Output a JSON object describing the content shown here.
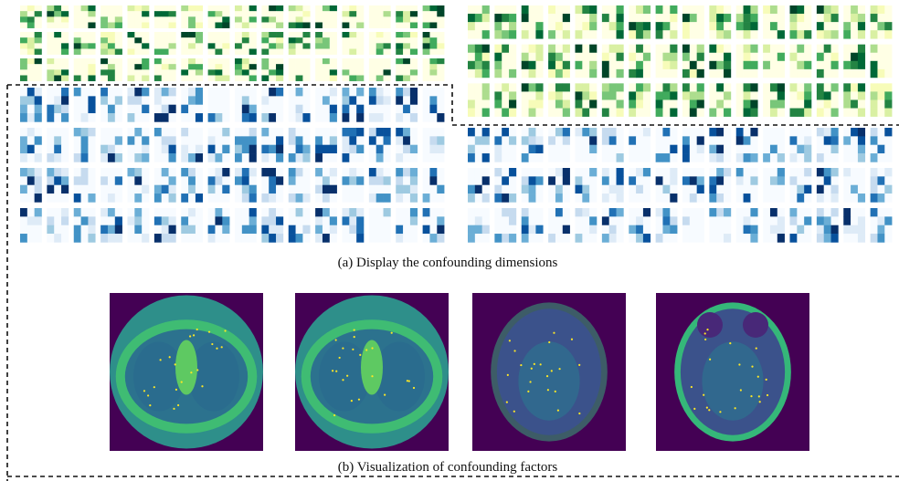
{
  "captions": {
    "a": "(a) Display the confounding dimensions",
    "b": "(b) Visualization of confounding factors"
  }
}
